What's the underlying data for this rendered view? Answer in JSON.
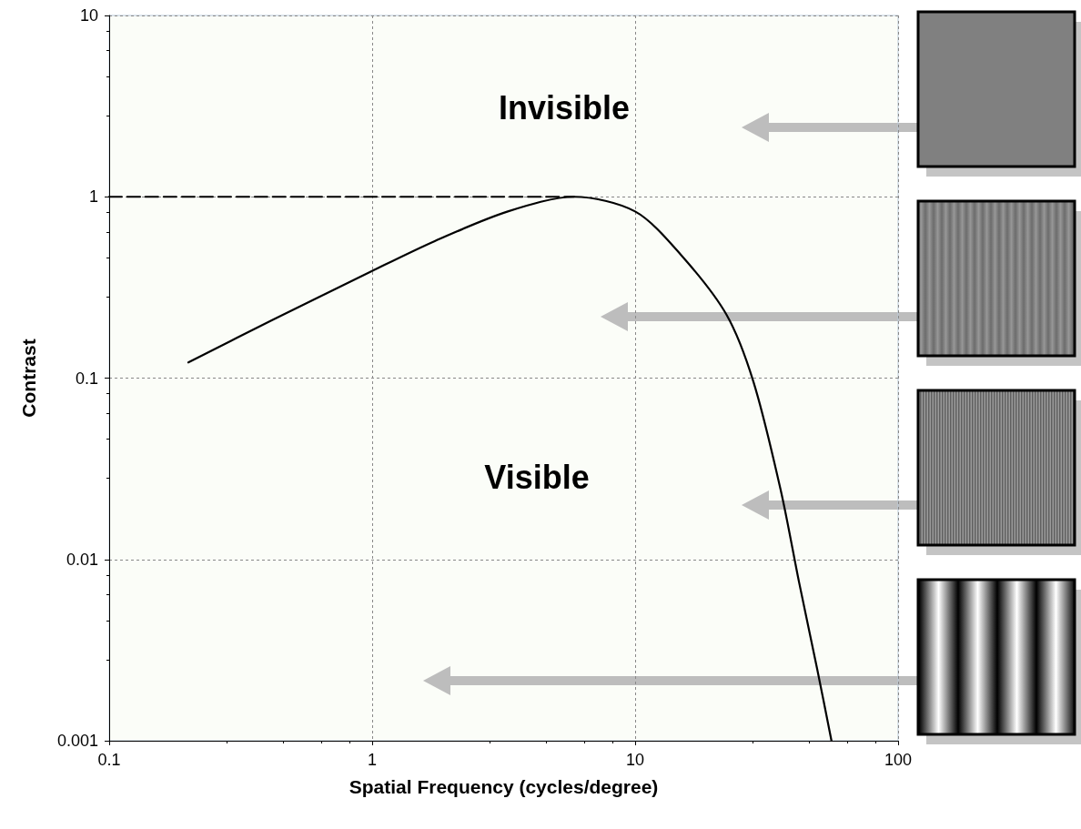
{
  "chart_data": {
    "type": "line",
    "xlabel": "Spatial Frequency (cycles/degree)",
    "ylabel": "Contrast",
    "log": "xy",
    "xlim": [
      0.1,
      100
    ],
    "ylim": [
      0.001,
      10
    ],
    "xticks": [
      0.1,
      1,
      10,
      100
    ],
    "yticks": [
      0.001,
      0.01,
      0.1,
      1,
      10
    ],
    "grid": true,
    "annotations": [
      "Invisible",
      "Visible"
    ],
    "series": [
      {
        "color": "#000000",
        "x": [
          0.2,
          0.42,
          1,
          1.73,
          3.28,
          5.86,
          10,
          14.9,
          22.2,
          28.2,
          35.8,
          42,
          49.2,
          55.8
        ],
        "values": [
          0.122,
          0.21,
          0.39,
          0.57,
          0.83,
          1,
          0.83,
          0.48,
          0.225,
          0.095,
          0.024,
          0.0075,
          0.0025,
          0.001
        ]
      },
      {
        "color": "#000000",
        "line_style": "dashed",
        "x": [
          0.1,
          5.86
        ],
        "values": [
          1,
          1
        ]
      }
    ]
  }
}
